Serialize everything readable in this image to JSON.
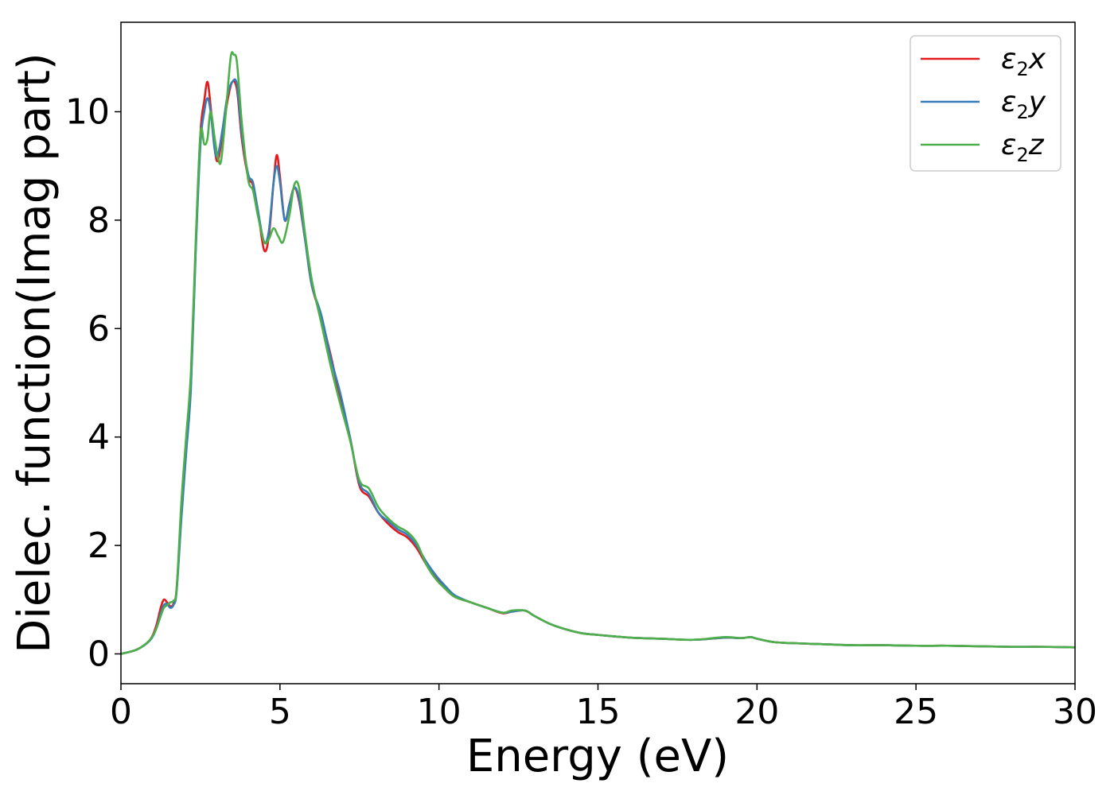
{
  "chart_data": {
    "type": "line",
    "xlabel": "Energy (eV)",
    "ylabel": "Dielec. function(Imag part)",
    "xlim": [
      0,
      30
    ],
    "ylim": [
      -0.55,
      11.65
    ],
    "xticks": [
      0,
      5,
      10,
      15,
      20,
      25,
      30
    ],
    "yticks": [
      0,
      2,
      4,
      6,
      8,
      10
    ],
    "grid": false,
    "legend_position": "top-right",
    "series": [
      {
        "name": "ε2x",
        "legend": {
          "base": "ε",
          "sub": "2",
          "var": "x"
        },
        "color": "#e41a1c",
        "points": [
          [
            0,
            0.0
          ],
          [
            0.5,
            0.08
          ],
          [
            0.9,
            0.25
          ],
          [
            1.1,
            0.5
          ],
          [
            1.25,
            0.85
          ],
          [
            1.35,
            1.0
          ],
          [
            1.45,
            0.95
          ],
          [
            1.55,
            0.88
          ],
          [
            1.65,
            0.92
          ],
          [
            1.75,
            1.2
          ],
          [
            1.9,
            2.6
          ],
          [
            2.05,
            3.8
          ],
          [
            2.2,
            5.0
          ],
          [
            2.35,
            7.5
          ],
          [
            2.5,
            9.6
          ],
          [
            2.62,
            10.2
          ],
          [
            2.72,
            10.55
          ],
          [
            2.82,
            10.1
          ],
          [
            2.95,
            9.3
          ],
          [
            3.05,
            9.1
          ],
          [
            3.2,
            9.6
          ],
          [
            3.35,
            10.2
          ],
          [
            3.5,
            10.55
          ],
          [
            3.65,
            10.4
          ],
          [
            3.8,
            9.5
          ],
          [
            4.0,
            8.8
          ],
          [
            4.15,
            8.65
          ],
          [
            4.3,
            8.2
          ],
          [
            4.5,
            7.45
          ],
          [
            4.65,
            7.7
          ],
          [
            4.8,
            8.7
          ],
          [
            4.9,
            9.2
          ],
          [
            5.0,
            8.8
          ],
          [
            5.15,
            8.0
          ],
          [
            5.3,
            8.3
          ],
          [
            5.45,
            8.6
          ],
          [
            5.6,
            8.35
          ],
          [
            5.8,
            7.6
          ],
          [
            6.0,
            6.8
          ],
          [
            6.3,
            6.2
          ],
          [
            6.6,
            5.5
          ],
          [
            6.9,
            4.7
          ],
          [
            7.2,
            4.0
          ],
          [
            7.5,
            3.1
          ],
          [
            7.8,
            2.9
          ],
          [
            8.1,
            2.6
          ],
          [
            8.4,
            2.4
          ],
          [
            8.7,
            2.25
          ],
          [
            9.0,
            2.15
          ],
          [
            9.3,
            1.95
          ],
          [
            9.6,
            1.65
          ],
          [
            9.9,
            1.4
          ],
          [
            10.2,
            1.2
          ],
          [
            10.5,
            1.05
          ],
          [
            11.0,
            0.95
          ],
          [
            11.5,
            0.85
          ],
          [
            12.0,
            0.75
          ],
          [
            12.3,
            0.78
          ],
          [
            12.7,
            0.8
          ],
          [
            13.0,
            0.7
          ],
          [
            13.5,
            0.55
          ],
          [
            14.0,
            0.45
          ],
          [
            14.5,
            0.38
          ],
          [
            15.0,
            0.35
          ],
          [
            16.0,
            0.3
          ],
          [
            17.0,
            0.28
          ],
          [
            18.0,
            0.26
          ],
          [
            19.0,
            0.3
          ],
          [
            19.5,
            0.29
          ],
          [
            19.8,
            0.31
          ],
          [
            20.0,
            0.28
          ],
          [
            20.5,
            0.22
          ],
          [
            21.0,
            0.2
          ],
          [
            22.0,
            0.18
          ],
          [
            23.0,
            0.16
          ],
          [
            24.0,
            0.16
          ],
          [
            25.0,
            0.15
          ],
          [
            26.0,
            0.15
          ],
          [
            27.0,
            0.14
          ],
          [
            28.0,
            0.13
          ],
          [
            29.0,
            0.13
          ],
          [
            30.0,
            0.12
          ]
        ]
      },
      {
        "name": "ε2y",
        "legend": {
          "base": "ε",
          "sub": "2",
          "var": "y"
        },
        "color": "#377eb8",
        "points": [
          [
            0,
            0.0
          ],
          [
            0.5,
            0.08
          ],
          [
            0.9,
            0.24
          ],
          [
            1.1,
            0.45
          ],
          [
            1.25,
            0.75
          ],
          [
            1.35,
            0.9
          ],
          [
            1.45,
            0.92
          ],
          [
            1.55,
            0.85
          ],
          [
            1.65,
            0.9
          ],
          [
            1.75,
            1.15
          ],
          [
            1.9,
            2.5
          ],
          [
            2.05,
            3.7
          ],
          [
            2.2,
            4.9
          ],
          [
            2.35,
            7.4
          ],
          [
            2.5,
            9.4
          ],
          [
            2.62,
            10.0
          ],
          [
            2.72,
            10.25
          ],
          [
            2.82,
            10.0
          ],
          [
            2.95,
            9.3
          ],
          [
            3.05,
            9.2
          ],
          [
            3.2,
            9.7
          ],
          [
            3.35,
            10.3
          ],
          [
            3.5,
            10.55
          ],
          [
            3.65,
            10.5
          ],
          [
            3.8,
            9.6
          ],
          [
            4.0,
            8.85
          ],
          [
            4.15,
            8.7
          ],
          [
            4.3,
            8.2
          ],
          [
            4.5,
            7.6
          ],
          [
            4.65,
            7.8
          ],
          [
            4.8,
            8.7
          ],
          [
            4.9,
            9.0
          ],
          [
            5.0,
            8.7
          ],
          [
            5.15,
            8.0
          ],
          [
            5.3,
            8.3
          ],
          [
            5.45,
            8.6
          ],
          [
            5.6,
            8.4
          ],
          [
            5.8,
            7.6
          ],
          [
            6.0,
            6.8
          ],
          [
            6.3,
            6.25
          ],
          [
            6.6,
            5.45
          ],
          [
            6.9,
            4.8
          ],
          [
            7.2,
            4.0
          ],
          [
            7.5,
            3.15
          ],
          [
            7.8,
            2.95
          ],
          [
            8.1,
            2.6
          ],
          [
            8.4,
            2.45
          ],
          [
            8.7,
            2.3
          ],
          [
            9.0,
            2.2
          ],
          [
            9.3,
            2.0
          ],
          [
            9.6,
            1.7
          ],
          [
            9.9,
            1.45
          ],
          [
            10.2,
            1.25
          ],
          [
            10.5,
            1.08
          ],
          [
            11.0,
            0.95
          ],
          [
            11.5,
            0.85
          ],
          [
            12.0,
            0.76
          ],
          [
            12.3,
            0.78
          ],
          [
            12.7,
            0.8
          ],
          [
            13.0,
            0.7
          ],
          [
            13.5,
            0.55
          ],
          [
            14.0,
            0.45
          ],
          [
            14.5,
            0.38
          ],
          [
            15.0,
            0.35
          ],
          [
            16.0,
            0.3
          ],
          [
            17.0,
            0.28
          ],
          [
            18.0,
            0.26
          ],
          [
            19.0,
            0.3
          ],
          [
            19.5,
            0.29
          ],
          [
            19.8,
            0.31
          ],
          [
            20.0,
            0.28
          ],
          [
            20.5,
            0.22
          ],
          [
            21.0,
            0.2
          ],
          [
            22.0,
            0.18
          ],
          [
            23.0,
            0.16
          ],
          [
            24.0,
            0.16
          ],
          [
            25.0,
            0.15
          ],
          [
            26.0,
            0.15
          ],
          [
            27.0,
            0.14
          ],
          [
            28.0,
            0.13
          ],
          [
            29.0,
            0.13
          ],
          [
            30.0,
            0.12
          ]
        ]
      },
      {
        "name": "ε2z",
        "legend": {
          "base": "ε",
          "sub": "2",
          "var": "z"
        },
        "color": "#4daf4a",
        "points": [
          [
            0,
            0.0
          ],
          [
            0.5,
            0.08
          ],
          [
            0.9,
            0.25
          ],
          [
            1.1,
            0.45
          ],
          [
            1.25,
            0.7
          ],
          [
            1.35,
            0.85
          ],
          [
            1.45,
            0.9
          ],
          [
            1.55,
            0.95
          ],
          [
            1.65,
            0.98
          ],
          [
            1.75,
            1.2
          ],
          [
            1.9,
            2.8
          ],
          [
            2.05,
            4.0
          ],
          [
            2.2,
            5.2
          ],
          [
            2.35,
            7.6
          ],
          [
            2.5,
            9.6
          ],
          [
            2.62,
            9.4
          ],
          [
            2.72,
            9.5
          ],
          [
            2.82,
            10.0
          ],
          [
            2.95,
            9.5
          ],
          [
            3.05,
            9.15
          ],
          [
            3.15,
            9.1
          ],
          [
            3.3,
            10.0
          ],
          [
            3.45,
            11.0
          ],
          [
            3.55,
            11.05
          ],
          [
            3.65,
            10.9
          ],
          [
            3.8,
            9.8
          ],
          [
            4.0,
            8.75
          ],
          [
            4.15,
            8.55
          ],
          [
            4.3,
            8.1
          ],
          [
            4.5,
            7.6
          ],
          [
            4.65,
            7.65
          ],
          [
            4.8,
            7.85
          ],
          [
            4.95,
            7.7
          ],
          [
            5.1,
            7.6
          ],
          [
            5.3,
            8.1
          ],
          [
            5.45,
            8.65
          ],
          [
            5.6,
            8.6
          ],
          [
            5.8,
            7.7
          ],
          [
            6.0,
            6.9
          ],
          [
            6.3,
            6.1
          ],
          [
            6.6,
            5.3
          ],
          [
            6.9,
            4.6
          ],
          [
            7.2,
            3.95
          ],
          [
            7.5,
            3.2
          ],
          [
            7.8,
            3.05
          ],
          [
            8.1,
            2.7
          ],
          [
            8.4,
            2.5
          ],
          [
            8.7,
            2.35
          ],
          [
            9.0,
            2.25
          ],
          [
            9.3,
            2.05
          ],
          [
            9.6,
            1.65
          ],
          [
            9.9,
            1.38
          ],
          [
            10.2,
            1.2
          ],
          [
            10.5,
            1.05
          ],
          [
            11.0,
            0.95
          ],
          [
            11.5,
            0.85
          ],
          [
            12.0,
            0.76
          ],
          [
            12.3,
            0.8
          ],
          [
            12.7,
            0.8
          ],
          [
            13.0,
            0.7
          ],
          [
            13.5,
            0.55
          ],
          [
            14.0,
            0.45
          ],
          [
            14.5,
            0.38
          ],
          [
            15.0,
            0.35
          ],
          [
            16.0,
            0.3
          ],
          [
            17.0,
            0.28
          ],
          [
            18.0,
            0.26
          ],
          [
            19.0,
            0.31
          ],
          [
            19.5,
            0.29
          ],
          [
            19.8,
            0.31
          ],
          [
            20.0,
            0.28
          ],
          [
            20.5,
            0.22
          ],
          [
            21.0,
            0.2
          ],
          [
            22.0,
            0.18
          ],
          [
            23.0,
            0.16
          ],
          [
            24.0,
            0.16
          ],
          [
            25.0,
            0.15
          ],
          [
            26.0,
            0.15
          ],
          [
            27.0,
            0.14
          ],
          [
            28.0,
            0.13
          ],
          [
            29.0,
            0.13
          ],
          [
            30.0,
            0.12
          ]
        ]
      }
    ]
  }
}
